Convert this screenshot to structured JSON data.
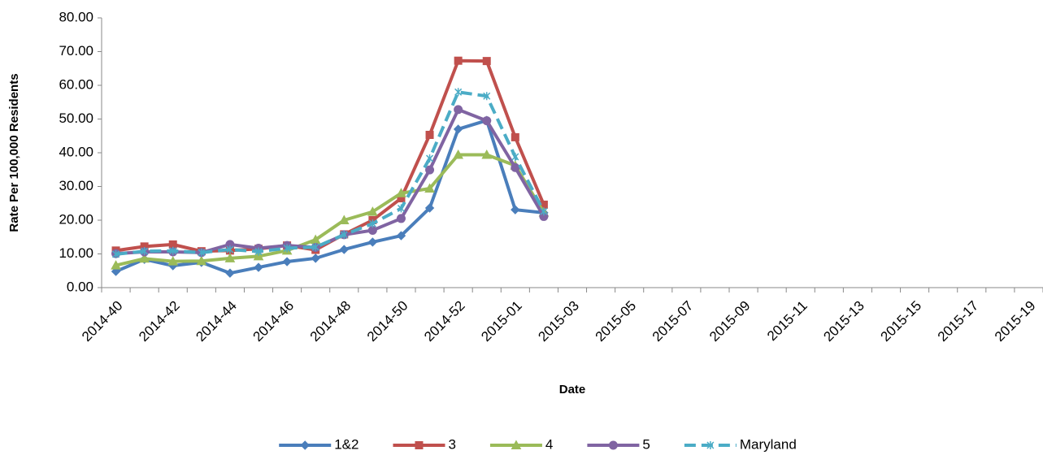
{
  "chart_data": {
    "type": "line",
    "y_label": "Rate Per 100,000 Residents",
    "x_label": "Date",
    "categories": [
      "2014-40",
      null,
      "2014-42",
      null,
      "2014-44",
      null,
      "2014-46",
      null,
      "2014-48",
      null,
      "2014-50",
      null,
      "2014-52",
      null,
      "2015-01",
      null,
      "2015-03",
      null,
      "2015-05",
      null,
      "2015-07",
      null,
      "2015-09",
      null,
      "2015-11",
      null,
      "2015-13",
      null,
      "2015-15",
      null,
      "2015-17",
      null,
      "2015-19"
    ],
    "ylim": [
      0,
      80
    ],
    "yticks": [
      {
        "value": 0,
        "label": "0.00"
      },
      {
        "value": 10,
        "label": "10.00"
      },
      {
        "value": 20,
        "label": "20.00"
      },
      {
        "value": 30,
        "label": "30.00"
      },
      {
        "value": 40,
        "label": "40.00"
      },
      {
        "value": 50,
        "label": "50.00"
      },
      {
        "value": 60,
        "label": "60.00"
      },
      {
        "value": 70,
        "label": "70.00"
      },
      {
        "value": 80,
        "label": "80.00"
      }
    ],
    "grid": false,
    "legend": "bottom",
    "series": [
      {
        "name": "1&2",
        "color": "#4a7ebb",
        "marker": "diamond",
        "line_style": "solid",
        "values": [
          4.8,
          8.4,
          6.5,
          7.5,
          4.3,
          6.0,
          7.7,
          8.7,
          11.3,
          13.5,
          15.4,
          23.6,
          47.0,
          49.6,
          23.1,
          22.2,
          null,
          null,
          null,
          null,
          null,
          null,
          null,
          null,
          null,
          null,
          null,
          null,
          null,
          null,
          null,
          null,
          null
        ]
      },
      {
        "name": "3",
        "color": "#c0504d",
        "marker": "square",
        "line_style": "solid",
        "values": [
          11.0,
          12.2,
          12.8,
          10.8,
          11.0,
          11.5,
          12.5,
          11.2,
          15.8,
          20.0,
          26.5,
          45.3,
          67.3,
          67.2,
          44.6,
          24.6,
          null,
          null,
          null,
          null,
          null,
          null,
          null,
          null,
          null,
          null,
          null,
          null,
          null,
          null,
          null,
          null,
          null
        ]
      },
      {
        "name": "4",
        "color": "#9bbb59",
        "marker": "triangle",
        "line_style": "solid",
        "values": [
          6.6,
          8.6,
          7.8,
          7.9,
          8.7,
          9.3,
          11.0,
          14.2,
          20.0,
          22.5,
          28.0,
          29.4,
          39.4,
          39.4,
          36.2,
          22.3,
          null,
          null,
          null,
          null,
          null,
          null,
          null,
          null,
          null,
          null,
          null,
          null,
          null,
          null,
          null,
          null,
          null
        ]
      },
      {
        "name": "5",
        "color": "#8064a2",
        "marker": "circle",
        "line_style": "solid",
        "values": [
          10.1,
          10.6,
          10.6,
          10.4,
          12.8,
          11.7,
          12.5,
          11.9,
          15.7,
          17.0,
          20.5,
          34.9,
          52.8,
          49.5,
          35.6,
          21.1,
          null,
          null,
          null,
          null,
          null,
          null,
          null,
          null,
          null,
          null,
          null,
          null,
          null,
          null,
          null,
          null,
          null
        ]
      },
      {
        "name": "Maryland",
        "color": "#4bacc6",
        "marker": "star",
        "line_style": "dashed",
        "values": [
          9.9,
          10.8,
          10.9,
          10.4,
          11.3,
          10.7,
          11.7,
          12.0,
          15.7,
          19.0,
          23.5,
          38.3,
          58.0,
          56.8,
          38.8,
          22.6,
          null,
          null,
          null,
          null,
          null,
          null,
          null,
          null,
          null,
          null,
          null,
          null,
          null,
          null,
          null,
          null,
          null
        ]
      }
    ]
  }
}
